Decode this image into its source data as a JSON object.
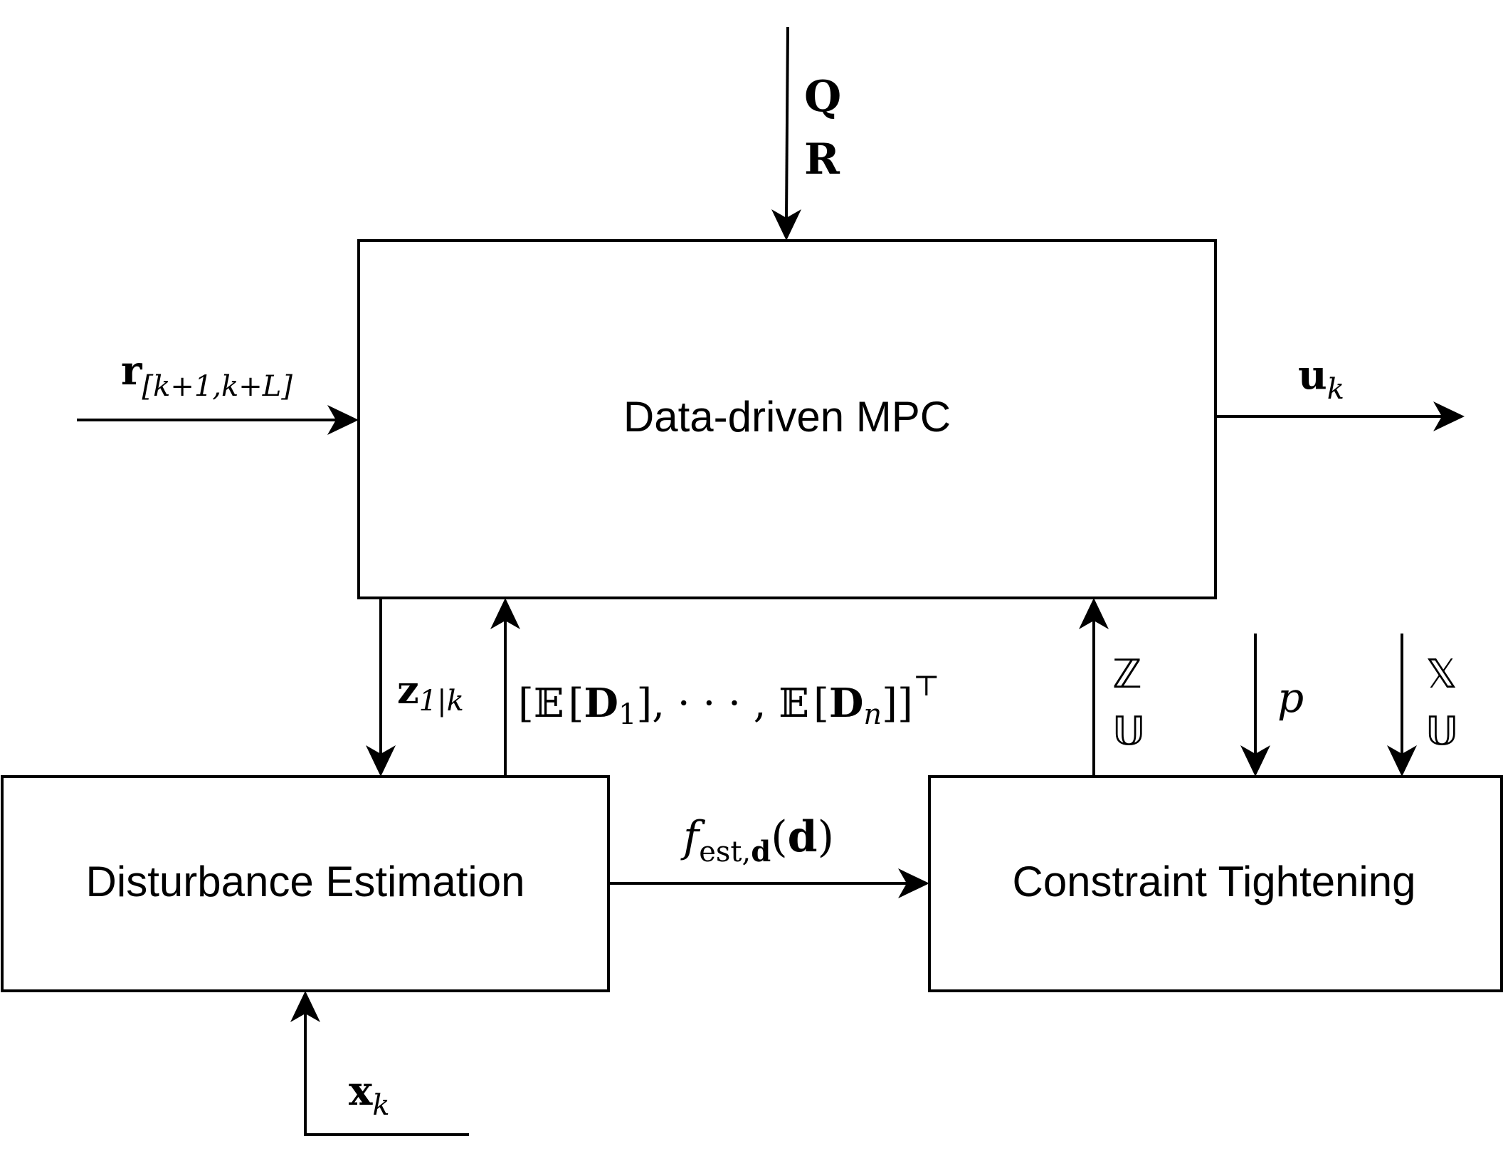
{
  "blocks": {
    "mpc": "Data-driven MPC",
    "disturbance": "Disturbance Estimation",
    "constraint": "Constraint Tightening"
  },
  "signals": {
    "weights": {
      "q": "Q",
      "r": "R"
    },
    "reference": {
      "base": "r",
      "sub": "[k+1,k+L]"
    },
    "control": {
      "base": "u",
      "sub": "k"
    },
    "z_estimate": {
      "base": "z",
      "sub": "1|k"
    },
    "expectation": {
      "open": "[",
      "e1": "𝔼",
      "lb1": "[",
      "d1": "D",
      "d1sub": "1",
      "rb1": "]",
      "sep": ", · · · , ",
      "e2": "𝔼",
      "lb2": "[",
      "d2": "D",
      "d2sub": "n",
      "rb2": "]",
      "close": "]",
      "transpose": "⊤"
    },
    "fest": {
      "base": "f",
      "sub_text": "est,",
      "sub_bold": "d",
      "arg_open": "(",
      "arg": "d",
      "arg_close": ")"
    },
    "state": {
      "base": "x",
      "sub": "k"
    },
    "sets_out": {
      "z": "ℤ",
      "u": "𝕌"
    },
    "probability": "p",
    "sets_in": {
      "x": "𝕏",
      "u": "𝕌"
    }
  }
}
